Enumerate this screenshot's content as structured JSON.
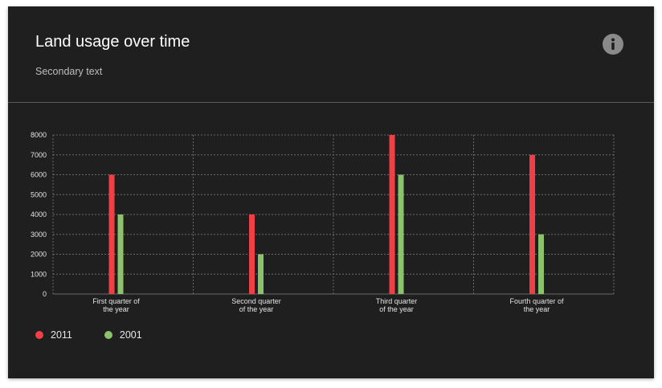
{
  "card": {
    "title": "Land usage over time",
    "subtitle": "Secondary text",
    "info_icon": "info-circle-icon"
  },
  "colors": {
    "background": "#1f1f1f",
    "series_2011": "#f23f45",
    "series_2001": "#8bc26a",
    "grid": "#6a6a6a",
    "info_icon": "#8a8a8a"
  },
  "chart_data": {
    "type": "bar",
    "categories": [
      [
        "First quarter of",
        "the year"
      ],
      [
        "Second quarter",
        "of the year"
      ],
      [
        "Third quarter",
        "of the year"
      ],
      [
        "Fourth quarter of",
        "the year"
      ]
    ],
    "series": [
      {
        "name": "2011",
        "values": [
          6000,
          4000,
          8000,
          7000
        ]
      },
      {
        "name": "2001",
        "values": [
          4000,
          2000,
          6000,
          3000
        ]
      }
    ],
    "ylim": [
      0,
      8000
    ],
    "yticks": [
      0,
      1000,
      2000,
      3000,
      4000,
      5000,
      6000,
      7000,
      8000
    ],
    "grid": true,
    "legend_position": "bottom-left"
  },
  "legend": [
    {
      "label": "2011"
    },
    {
      "label": "2001"
    }
  ]
}
